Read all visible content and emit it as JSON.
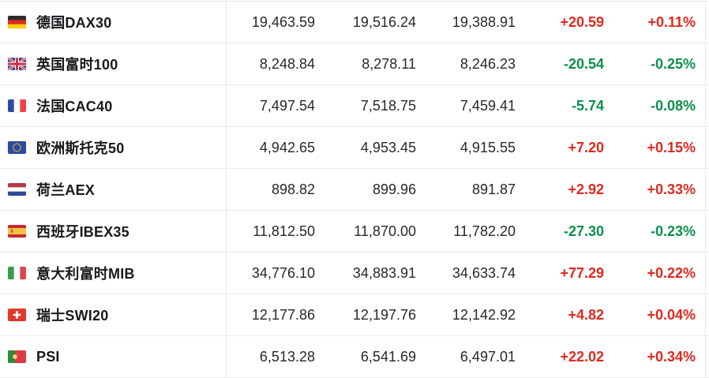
{
  "table": {
    "description": "European stock index quotes",
    "columns": [
      "index_name",
      "last",
      "high",
      "low",
      "change",
      "change_pct"
    ],
    "colors": {
      "up": "#e0281e",
      "down": "#0a8f4c",
      "divider": "#e7e8ea",
      "name_text": "#17191c",
      "number_text": "#26282d"
    },
    "rows": [
      {
        "flag_icon": "germany-flag-icon",
        "flag": "de",
        "name": "德国DAX30",
        "last": "19,463.59",
        "high": "19,516.24",
        "low": "19,388.91",
        "change": "+20.59",
        "change_pct": "+0.11%",
        "direction": "up"
      },
      {
        "flag_icon": "uk-flag-icon",
        "flag": "gb",
        "name": "英国富时100",
        "last": "8,248.84",
        "high": "8,278.11",
        "low": "8,246.23",
        "change": "-20.54",
        "change_pct": "-0.25%",
        "direction": "down"
      },
      {
        "flag_icon": "france-flag-icon",
        "flag": "fr",
        "name": "法国CAC40",
        "last": "7,497.54",
        "high": "7,518.75",
        "low": "7,459.41",
        "change": "-5.74",
        "change_pct": "-0.08%",
        "direction": "down"
      },
      {
        "flag_icon": "eu-flag-icon",
        "flag": "eu",
        "name": "欧洲斯托克50",
        "last": "4,942.65",
        "high": "4,953.45",
        "low": "4,915.55",
        "change": "+7.20",
        "change_pct": "+0.15%",
        "direction": "up"
      },
      {
        "flag_icon": "netherlands-flag-icon",
        "flag": "nl",
        "name": "荷兰AEX",
        "last": "898.82",
        "high": "899.96",
        "low": "891.87",
        "change": "+2.92",
        "change_pct": "+0.33%",
        "direction": "up"
      },
      {
        "flag_icon": "spain-flag-icon",
        "flag": "es",
        "name": "西班牙IBEX35",
        "last": "11,812.50",
        "high": "11,870.00",
        "low": "11,782.20",
        "change": "-27.30",
        "change_pct": "-0.23%",
        "direction": "down"
      },
      {
        "flag_icon": "italy-flag-icon",
        "flag": "it",
        "name": "意大利富时MIB",
        "last": "34,776.10",
        "high": "34,883.91",
        "low": "34,633.74",
        "change": "+77.29",
        "change_pct": "+0.22%",
        "direction": "up"
      },
      {
        "flag_icon": "switzerland-flag-icon",
        "flag": "ch",
        "name": "瑞士SWI20",
        "last": "12,177.86",
        "high": "12,197.76",
        "low": "12,142.92",
        "change": "+4.82",
        "change_pct": "+0.04%",
        "direction": "up"
      },
      {
        "flag_icon": "portugal-flag-icon",
        "flag": "pt",
        "name": "PSI",
        "last": "6,513.28",
        "high": "6,541.69",
        "low": "6,497.01",
        "change": "+22.02",
        "change_pct": "+0.34%",
        "direction": "up"
      }
    ]
  }
}
